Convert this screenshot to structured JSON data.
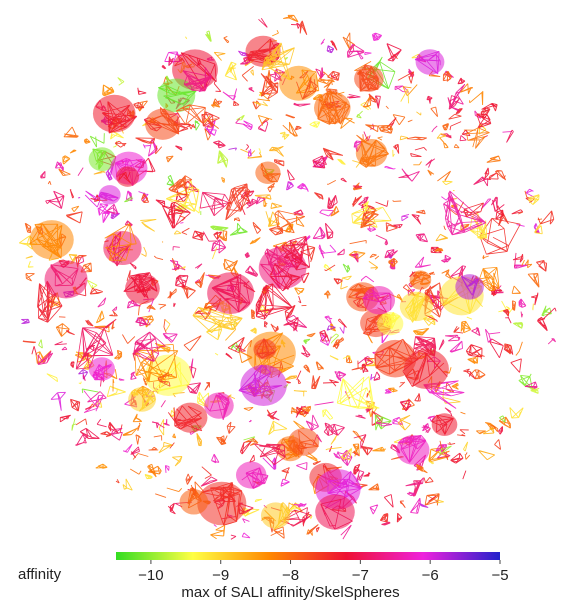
{
  "chart_data": {
    "type": "network",
    "legend_label": "affinity",
    "colorbar_title": "max of SALI affinity/SkelSpheres",
    "color_scale": {
      "range": [
        -10.5,
        -5
      ],
      "ticks": [
        -10,
        -9,
        -8,
        -7,
        -6,
        -5
      ],
      "tick_labels": [
        "−10",
        "−9",
        "−8",
        "−7",
        "−6",
        "−5"
      ],
      "colors": [
        "#33dd22",
        "#ffff44",
        "#ff8800",
        "#ee1133",
        "#ee22dd",
        "#2222cc"
      ]
    },
    "grid": false
  }
}
